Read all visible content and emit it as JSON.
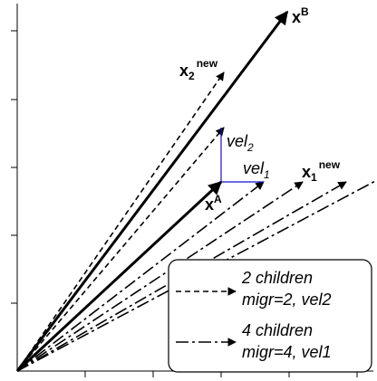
{
  "labels": {
    "xB": {
      "base": "x",
      "sup": "B"
    },
    "x2new": {
      "base": "x",
      "sub": "2",
      "sup": "new"
    },
    "xA": {
      "base": "x",
      "sup": "A"
    },
    "x1new": {
      "base": "x",
      "sub": "1",
      "sup": "new"
    },
    "vel2": {
      "base": "vel",
      "sub": "2"
    },
    "vel1": {
      "base": "vel",
      "sub": "1"
    }
  },
  "legend": {
    "entry1_line1": "2 children",
    "entry1_line2": "migr=2, vel2",
    "entry2_line1": "4 children",
    "entry2_line2": "migr=4, vel1"
  },
  "colors": {
    "velocity": "#1010c8",
    "vectors": "#000000"
  }
}
